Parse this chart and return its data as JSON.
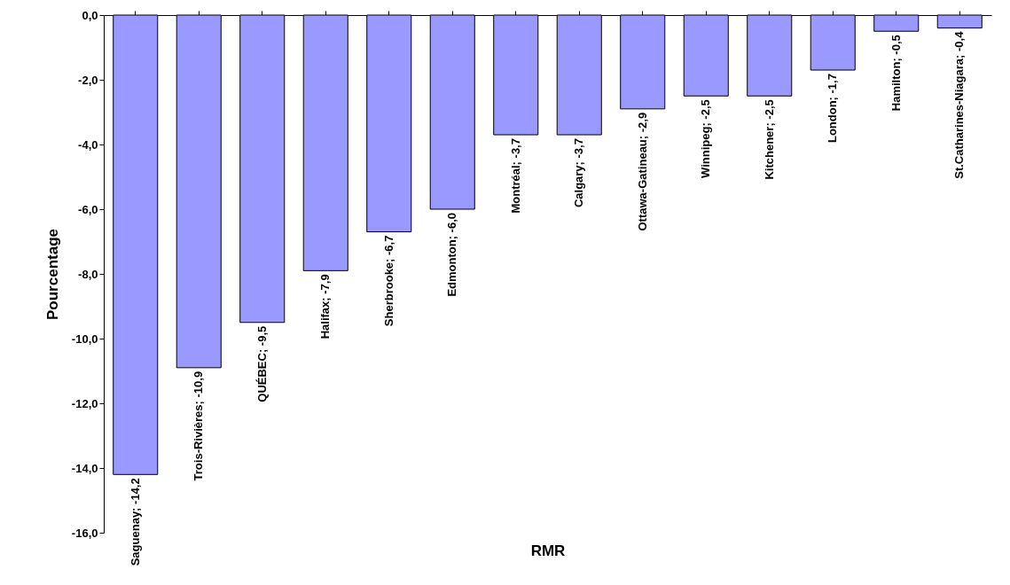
{
  "chart_data": {
    "type": "bar",
    "xlabel": "RMR",
    "ylabel": "Pourcentage",
    "categories": [
      null,
      null,
      null,
      null,
      null,
      null,
      null,
      null,
      null,
      null,
      null,
      null,
      null,
      null
    ],
    "values": [
      -14.2,
      -10.9,
      -9.5,
      -7.9,
      -6.7,
      -6.0,
      -3.7,
      -3.7,
      -2.9,
      -2.5,
      -2.5,
      -1.7,
      -0.5,
      -0.4
    ],
    "value_labels": [
      "Saguenay; -14,2",
      "Trois-Rivières; -10,9",
      "QUÉBEC; -9,5",
      "Halifax; -7,9",
      "Sherbrooke; -6,7",
      "Edmonton; -6,0",
      "Montréal; -3,7",
      "Calgary; -3,7",
      "Ottawa-Gatineau; -2,9",
      "Winnipeg; -2,5",
      "Kitchener; -2,5",
      "London; -1,7",
      "Hamilton; -0,5",
      "St.Catharines-Niagara; -0,4"
    ],
    "color": "#9999ff",
    "ylim": [
      -16,
      0
    ],
    "yticks": [
      {
        "value": 0,
        "label": "0,0"
      },
      {
        "value": -2,
        "label": "-2,0"
      },
      {
        "value": -4,
        "label": "-4,0"
      },
      {
        "value": -6,
        "label": "-6,0"
      },
      {
        "value": -8,
        "label": "-8,0"
      },
      {
        "value": -10,
        "label": "-10,0"
      },
      {
        "value": -12,
        "label": "-12,0"
      },
      {
        "value": -14,
        "label": "-14,0"
      },
      {
        "value": -16,
        "label": "-16,0"
      }
    ],
    "grid": false
  }
}
